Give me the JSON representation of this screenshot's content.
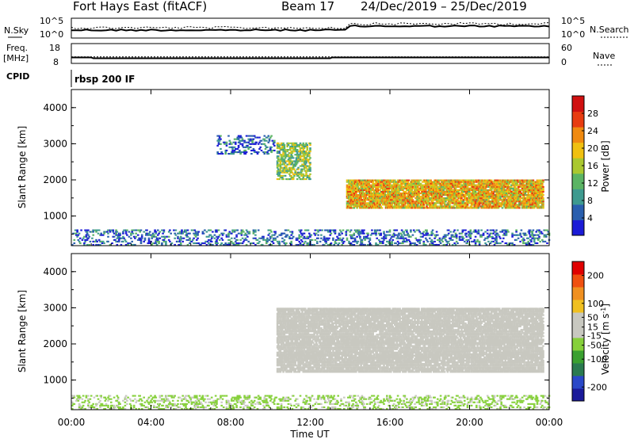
{
  "header": {
    "title": "Fort Hays East (fitACF)",
    "beam": "Beam 17",
    "date_range": "24/Dec/2019 – 25/Dec/2019"
  },
  "strips": {
    "nsky_label": "N.Sky",
    "nsky_ticks": [
      "10^5",
      "10^0"
    ],
    "nsearch_label": "N.Search",
    "nsearch_ticks": [
      "10^5",
      "10^0"
    ],
    "freq_label": "Freq.",
    "freq_unit": "[MHz]",
    "freq_ticks": [
      "18",
      "8"
    ],
    "nave_label": "Nave",
    "nave_ticks": [
      "60",
      "0"
    ],
    "cpid_label": "CPID",
    "cpid_value": "rbsp 200 IF",
    "freq_data": {
      "t": [
        0,
        1,
        1.1,
        13,
        13.1,
        24
      ],
      "mhz": [
        11,
        11,
        10.6,
        10.6,
        11,
        11
      ]
    },
    "nave_data": {
      "t": [
        0,
        24
      ],
      "n": [
        20,
        20
      ]
    }
  },
  "x_axis": {
    "label": "Time UT",
    "ticks": [
      "00:00",
      "04:00",
      "08:00",
      "12:00",
      "16:00",
      "20:00",
      "00:00"
    ],
    "tick_hours": [
      0,
      4,
      8,
      12,
      16,
      20,
      24
    ]
  },
  "chart_data": [
    {
      "type": "heatmap",
      "name": "power",
      "ylabel": "Slant Range [km]",
      "ylim": [
        180,
        4500
      ],
      "xlim": [
        0,
        24
      ],
      "yticks": [
        "4000",
        "3000",
        "2000",
        "1000"
      ],
      "ytick_values": [
        4000,
        3000,
        2000,
        1000
      ],
      "colorbar_label": "Power [dB]",
      "colorbar_ticks": [
        "28",
        "24",
        "20",
        "16",
        "12",
        "8",
        "4"
      ],
      "colorbar_values": [
        28,
        24,
        20,
        16,
        12,
        8,
        4
      ],
      "colorbar_range": [
        0,
        32
      ],
      "colors": [
        "#1b1bd6",
        "#2a5fae",
        "#3e9a8f",
        "#5bb464",
        "#aac830",
        "#f0c010",
        "#f08a10",
        "#e83c10",
        "#d01010"
      ],
      "features": [
        {
          "region": "ground scatter near range",
          "t": [
            0.0,
            24.0
          ],
          "range_km": [
            180,
            600
          ],
          "typical_db": 6
        },
        {
          "region": "early scatter",
          "t": [
            7.3,
            10.2
          ],
          "range_km": [
            2700,
            3200
          ],
          "typical_db": 6
        },
        {
          "region": "patch",
          "t": [
            10.3,
            12.0
          ],
          "range_km": [
            2000,
            3000
          ],
          "typical_db": 14
        },
        {
          "region": "main band",
          "t": [
            13.8,
            23.7
          ],
          "range_km": [
            1200,
            2000
          ],
          "typical_db": 20
        }
      ]
    },
    {
      "type": "heatmap",
      "name": "velocity",
      "ylabel": "Slant Range [km]",
      "ylim": [
        180,
        4500
      ],
      "xlim": [
        0,
        24
      ],
      "yticks": [
        "4000",
        "3000",
        "2000",
        "1000"
      ],
      "ytick_values": [
        4000,
        3000,
        2000,
        1000
      ],
      "colorbar_label": "Velocity [m s^-1]",
      "colorbar_ticks": [
        "200",
        "100",
        "50",
        "15",
        "-15",
        "-50",
        "-100",
        "-200"
      ],
      "colorbar_values": [
        200,
        100,
        50,
        15,
        -15,
        -50,
        -100,
        -200
      ],
      "colorbar_range": [
        -250,
        250
      ],
      "colors": [
        "#1a1a9a",
        "#2a48c8",
        "#2a7a50",
        "#3aa030",
        "#86d03a",
        "#c8c8c0",
        "#c8c8c0",
        "#f0c020",
        "#f09020",
        "#f05010",
        "#e00000"
      ],
      "features": [
        {
          "region": "near-range ground scatter",
          "t": [
            0.0,
            24.0
          ],
          "range_km": [
            180,
            550
          ],
          "typical_ms": -30
        },
        {
          "region": "main band",
          "t": [
            10.3,
            23.7
          ],
          "range_km": [
            1200,
            3000
          ],
          "typical_ms": 0
        }
      ]
    }
  ]
}
